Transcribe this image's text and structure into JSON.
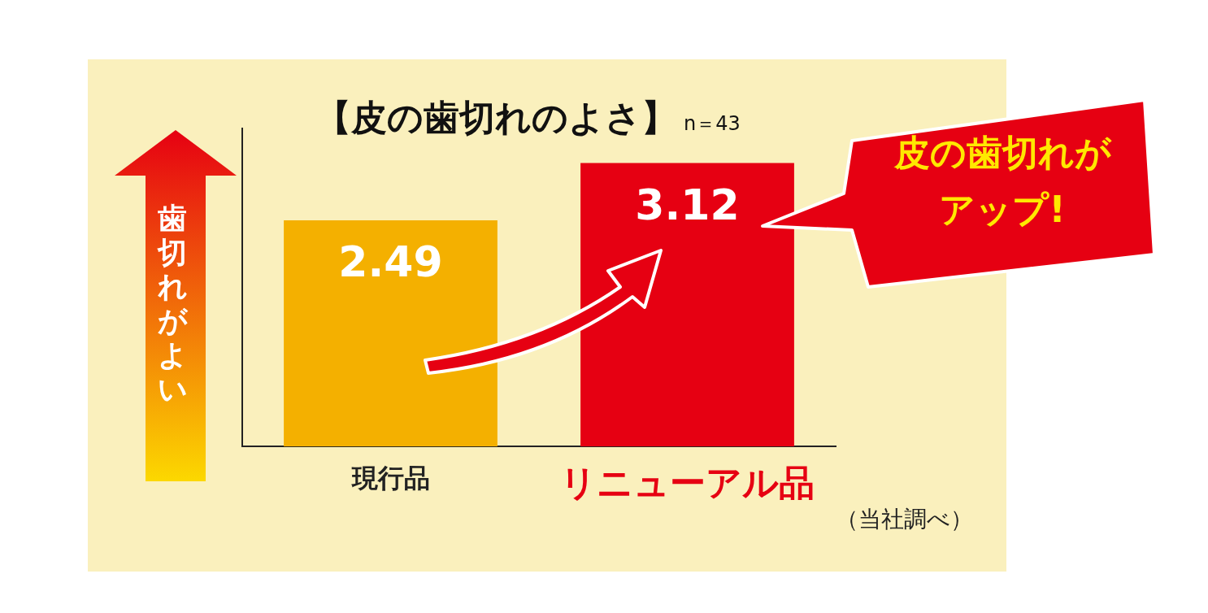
{
  "chart_data": {
    "type": "bar",
    "title": "【皮の歯切れのよさ】",
    "subtitle": "n＝43",
    "ylabel": "歯切れがよい",
    "categories": [
      "現行品",
      "リニューアル品"
    ],
    "values": [
      2.49,
      3.12
    ],
    "colors": [
      "#f4b000",
      "#e60012"
    ],
    "data_labels": true,
    "grid": false,
    "legend": false,
    "annotations": [
      "皮の歯切れがアップ!",
      "（当社調べ）"
    ]
  }
}
